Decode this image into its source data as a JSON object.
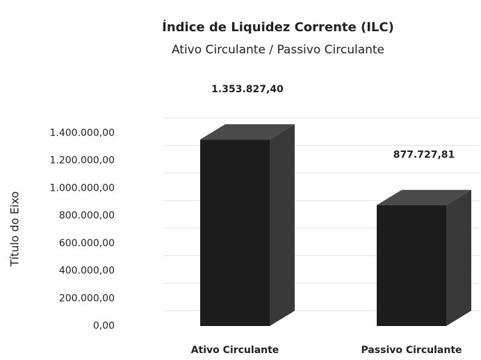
{
  "chart_data": {
    "type": "bar",
    "title": "Índice de Liquidez Corrente (ILC)",
    "subtitle": "Ativo Circulante / Passivo Circulante",
    "y_axis_label": "Título do Eixo",
    "categories": [
      "Ativo Circulante",
      "Passivo Circulante"
    ],
    "values": [
      1353827.4,
      877727.81
    ],
    "value_labels": [
      "1.353.827,40",
      "877.727,81"
    ],
    "color": "#1c1c1c",
    "ylim": [
      0,
      1400000
    ],
    "yticks": [
      {
        "value": 0,
        "label": "0,00"
      },
      {
        "value": 200000,
        "label": "200.000,00"
      },
      {
        "value": 400000,
        "label": "400.000,00"
      },
      {
        "value": 600000,
        "label": "600.000,00"
      },
      {
        "value": 800000,
        "label": "800.000,00"
      },
      {
        "value": 1000000,
        "label": "1.000.000,00"
      },
      {
        "value": 1200000,
        "label": "1.200.000,00"
      },
      {
        "value": 1400000,
        "label": "1.400.000,00"
      }
    ],
    "grid": true
  }
}
